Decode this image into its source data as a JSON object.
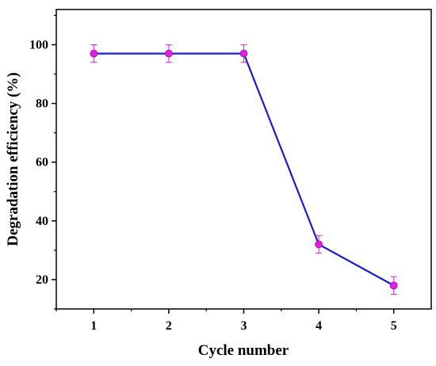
{
  "chart_data": {
    "type": "line",
    "xlabel": "Cycle number",
    "ylabel": "Degradation efficiency (%)",
    "x": [
      1,
      2,
      3,
      4,
      5
    ],
    "xlim": [
      0.5,
      5.5
    ],
    "ylim": [
      10,
      112
    ],
    "xticks": [
      1,
      2,
      3,
      4,
      5
    ],
    "yticks": [
      20,
      40,
      60,
      80,
      100
    ],
    "series": [
      {
        "values": [
          97,
          97,
          97,
          32,
          18
        ],
        "errors": [
          3,
          3,
          3,
          3,
          3
        ],
        "line_color": "#1a1adb",
        "marker_color": "#e020e0"
      }
    ],
    "grid": false,
    "legend": "none"
  }
}
